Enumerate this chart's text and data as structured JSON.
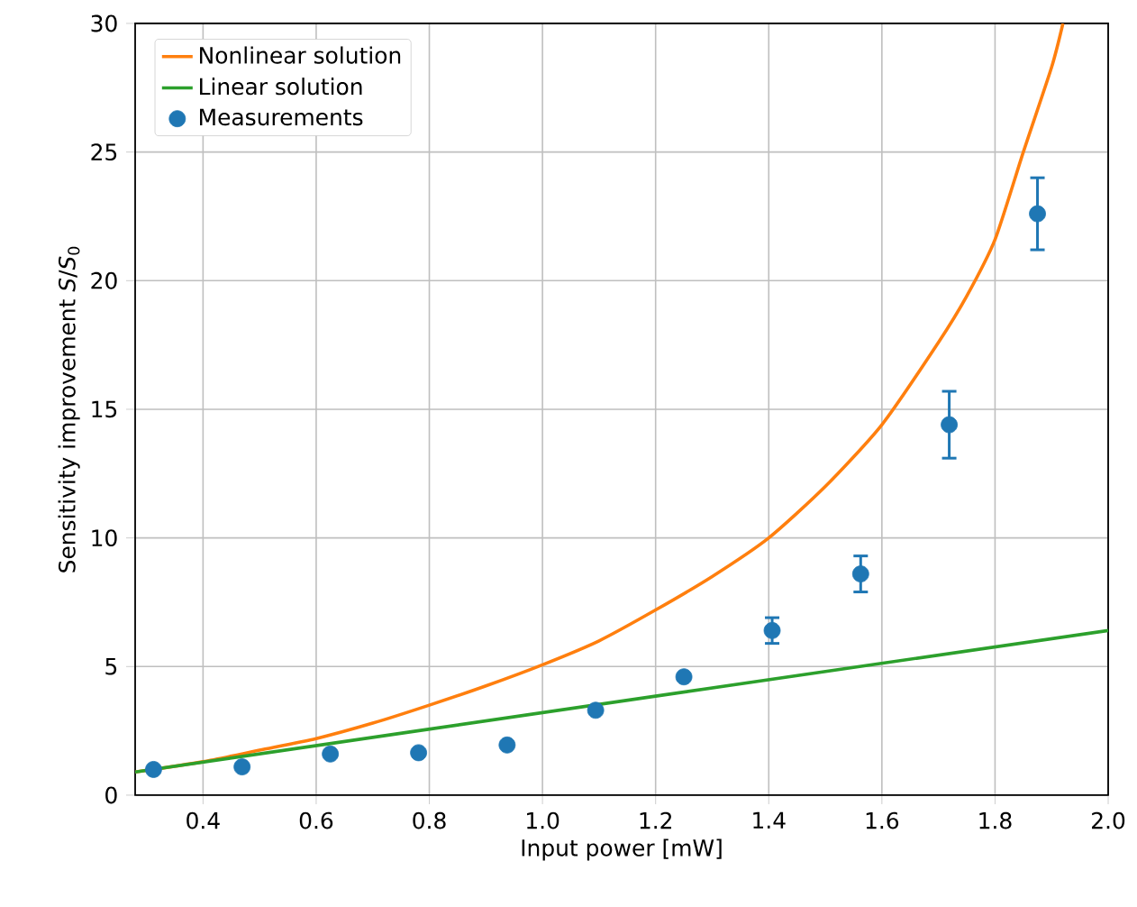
{
  "chart_data": {
    "type": "line",
    "xlabel": "Input power [mW]",
    "ylabel": "Sensitivity improvement *S*/*S*$_{0}$",
    "xlim": [
      0.28,
      2.0
    ],
    "ylim": [
      0,
      30
    ],
    "xticks": [
      {
        "value": 0.4,
        "label": "0.4"
      },
      {
        "value": 0.6,
        "label": "0.6"
      },
      {
        "value": 0.8,
        "label": "0.8"
      },
      {
        "value": 1.0,
        "label": "1.0"
      },
      {
        "value": 1.2,
        "label": "1.2"
      },
      {
        "value": 1.4,
        "label": "1.4"
      },
      {
        "value": 1.6,
        "label": "1.6"
      },
      {
        "value": 1.8,
        "label": "1.8"
      },
      {
        "value": 2.0,
        "label": "2.0"
      }
    ],
    "yticks": [
      0,
      5,
      10,
      15,
      20,
      25,
      30
    ],
    "grid": true,
    "legend": "top left",
    "series": [
      {
        "name": "Nonlinear solution",
        "color": "#ff7f0e",
        "marker": "none",
        "x": [
          0.28,
          0.4,
          0.5,
          0.6,
          0.7,
          0.8,
          0.9,
          1.0,
          1.1,
          1.2,
          1.3,
          1.4,
          1.5,
          1.6,
          1.7,
          1.75,
          1.8,
          1.85,
          1.9,
          1.92
        ],
        "values": [
          0.9,
          1.3,
          1.75,
          2.2,
          2.8,
          3.5,
          4.25,
          5.07,
          6.0,
          7.2,
          8.5,
          10.0,
          12.0,
          14.4,
          17.6,
          19.4,
          21.6,
          25.0,
          28.3,
          30.0
        ]
      },
      {
        "name": "Linear solution",
        "color": "#2ca02c",
        "marker": "none",
        "x": [
          0.28,
          1.2,
          2.0
        ],
        "values": [
          0.9,
          3.85,
          6.4
        ]
      },
      {
        "name": "Measurements",
        "type": "scatter",
        "color": "#1f77b4",
        "marker": "circle",
        "x": [
          0.3125,
          0.469,
          0.625,
          0.781,
          0.9375,
          1.094,
          1.25,
          1.406,
          1.5625,
          1.719,
          1.875
        ],
        "values": [
          1.0,
          1.1,
          1.6,
          1.65,
          1.95,
          3.3,
          4.6,
          6.4,
          8.6,
          14.4,
          22.6
        ],
        "errors": [
          null,
          null,
          null,
          null,
          null,
          null,
          null,
          0.5,
          0.7,
          1.3,
          1.4
        ]
      }
    ]
  }
}
